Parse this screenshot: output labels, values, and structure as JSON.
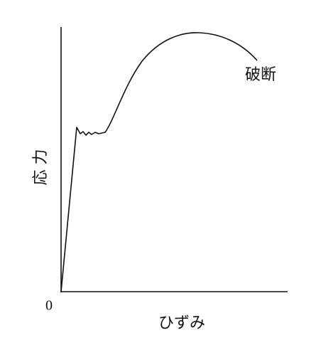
{
  "axes": {
    "origin": "0",
    "x_label": "ひずみ",
    "y_label": "応 力"
  },
  "annotations": {
    "fracture": "破断"
  }
}
